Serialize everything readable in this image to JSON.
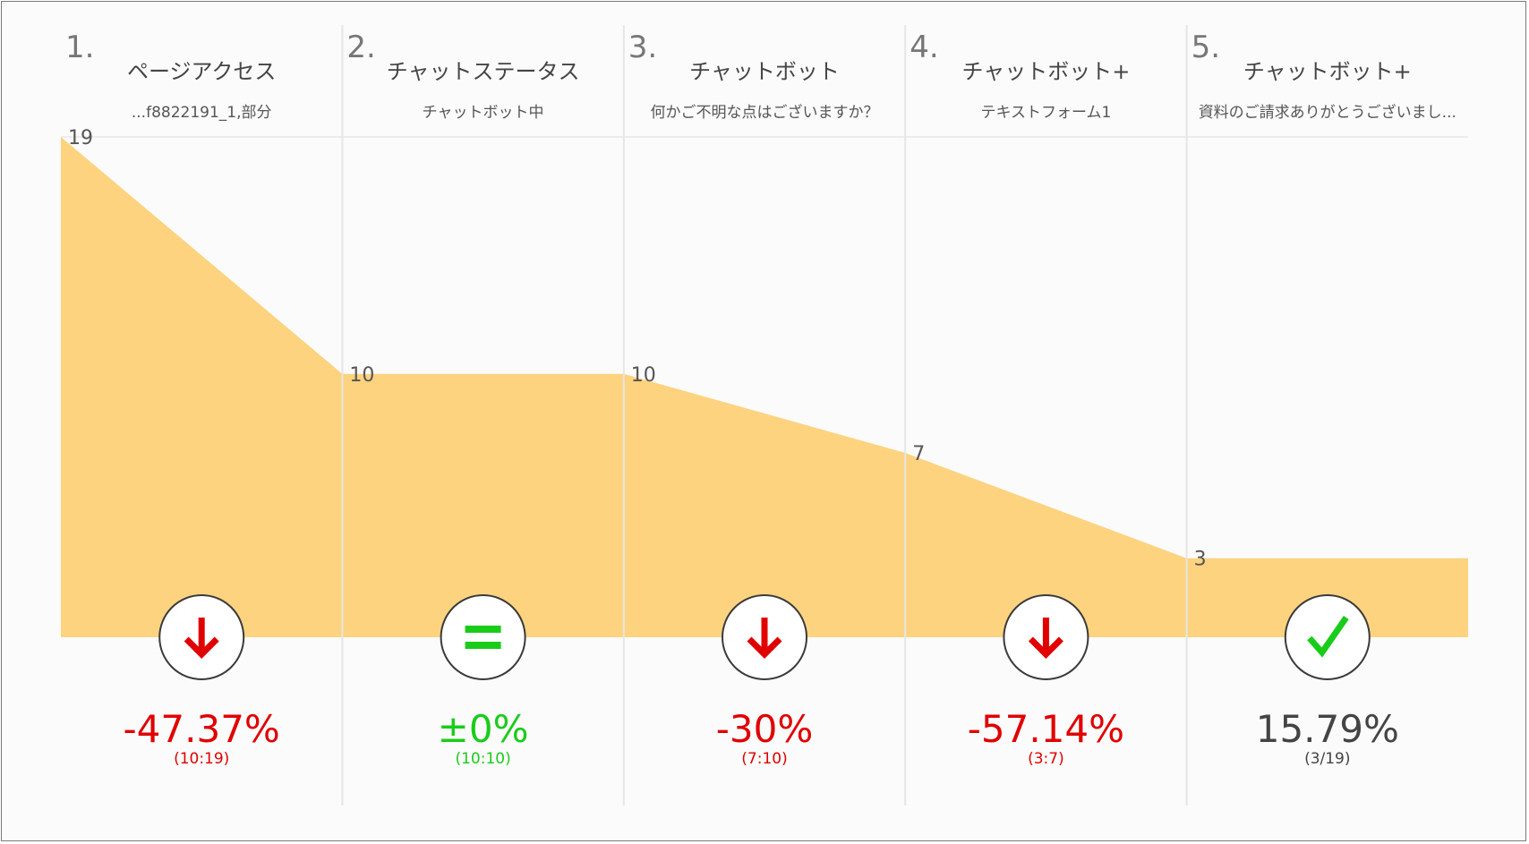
{
  "chart_data": {
    "type": "area",
    "steps": [
      {
        "number": "1.",
        "title": "ページアクセス",
        "subtitle": "...f8822191_1,部分",
        "value": 19,
        "indicator": "down-arrow-icon",
        "rate": "-47.37%",
        "ratio": "(10:19)",
        "status": "down"
      },
      {
        "number": "2.",
        "title": "チャットステータス",
        "subtitle": "チャットボット中",
        "value": 10,
        "indicator": "equal-icon",
        "rate": "±0%",
        "ratio": "(10:10)",
        "status": "flat"
      },
      {
        "number": "3.",
        "title": "チャットボット",
        "subtitle": "何かご不明な点はございますか？",
        "value": 10,
        "indicator": "down-arrow-icon",
        "rate": "-30%",
        "ratio": "(7:10)",
        "status": "down"
      },
      {
        "number": "4.",
        "title": "チャットボット+",
        "subtitle": "テキストフォーム1",
        "value": 7,
        "indicator": "down-arrow-icon",
        "rate": "-57.14%",
        "ratio": "(3:7)",
        "status": "down"
      },
      {
        "number": "5.",
        "title": "チャットボット+",
        "subtitle": "資料のご請求ありがとうございまし...",
        "value": 3,
        "indicator": "check-icon",
        "rate": "15.79%",
        "ratio": "(3/19)",
        "status": "total"
      }
    ],
    "ylim": [
      0,
      19
    ],
    "colors": {
      "area": "#fdd37f",
      "down": "#e00000",
      "flat": "#19cc19",
      "check": "#19cc19",
      "total": "#444444"
    }
  }
}
